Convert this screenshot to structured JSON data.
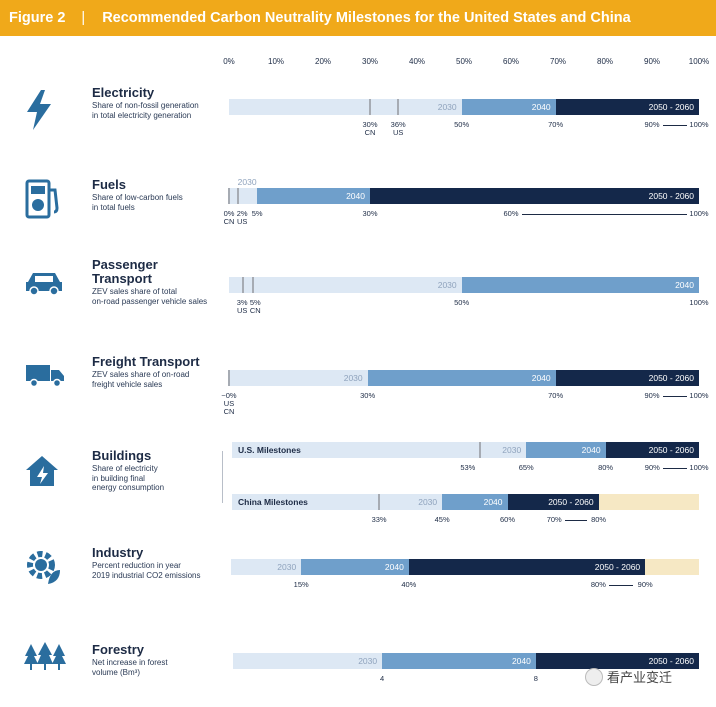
{
  "header": {
    "figure": "Figure 2",
    "separator": "|",
    "title": "Recommended Carbon Neutrality Milestones for the United States and China"
  },
  "colors": {
    "header_bg": "#f0a91a",
    "baseline": "#dde8f4",
    "period_2030": "#dde8f4",
    "period_2040": "#6f9fcb",
    "period_2050": "#14284a",
    "overflow": "#f6e8c4",
    "marker": "#a6abb3"
  },
  "chart_data": {
    "type": "bar",
    "axis": {
      "min": 0,
      "max": 100,
      "ticks": [
        "0%",
        "10%",
        "20%",
        "30%",
        "40%",
        "50%",
        "60%",
        "70%",
        "80%",
        "90%",
        "100%"
      ]
    },
    "rows": [
      {
        "id": "electricity",
        "icon": "lightning-icon",
        "title": "Electricity",
        "subtitle": [
          "Share of non-fossil generation",
          "in total electricity generation"
        ],
        "bars": [
          {
            "segments": [
              {
                "start": 0,
                "end": 49.5,
                "period": "2030",
                "label": "2030"
              },
              {
                "start": 49.5,
                "end": 69.5,
                "period": "2040",
                "label": "2040"
              },
              {
                "start": 69.5,
                "end": 100,
                "period": "2050",
                "label": "2050 - 2060"
              }
            ],
            "markers": [
              30,
              36
            ],
            "values": [
              {
                "at": 30,
                "text": "30%\nCN"
              },
              {
                "at": 36,
                "text": "36%\nUS"
              },
              {
                "at": 49.5,
                "text": "50%"
              },
              {
                "at": 69.5,
                "text": "70%"
              },
              {
                "at": 90,
                "text": "90%"
              },
              {
                "at": 100,
                "text": "100%"
              }
            ],
            "ranges": [
              [
                90,
                100
              ]
            ]
          }
        ]
      },
      {
        "id": "fuels",
        "icon": "fuel-pump-icon",
        "title": "Fuels",
        "subtitle": [
          "Share of low-carbon fuels",
          "in total fuels"
        ],
        "bars": [
          {
            "segments": [
              {
                "start": 0,
                "end": 6,
                "period": "2030",
                "label": "2030",
                "label_above": true
              },
              {
                "start": 6,
                "end": 30,
                "period": "2040",
                "label": "2040"
              },
              {
                "start": 30,
                "end": 100,
                "period": "2050",
                "label": "2050 - 2060"
              }
            ],
            "markers": [
              0,
              2
            ],
            "values": [
              {
                "at": 0,
                "text": "0%\nCN"
              },
              {
                "at": 2.8,
                "text": "2%\nUS"
              },
              {
                "at": 6,
                "text": "5%"
              },
              {
                "at": 30,
                "text": "30%"
              },
              {
                "at": 60,
                "text": "60%"
              },
              {
                "at": 100,
                "text": "100%"
              }
            ],
            "ranges": [
              [
                60,
                100
              ]
            ]
          }
        ]
      },
      {
        "id": "passenger",
        "icon": "car-icon",
        "title": "Passenger Transport",
        "subtitle": [
          "ZEV sales share of total",
          "on-road passenger vehicle sales"
        ],
        "bars": [
          {
            "segments": [
              {
                "start": 0,
                "end": 49.5,
                "period": "2030",
                "label": "2030"
              },
              {
                "start": 49.5,
                "end": 100,
                "period": "2040",
                "label": "2040"
              }
            ],
            "markers": [
              3,
              5
            ],
            "values": [
              {
                "at": 2.8,
                "text": "3%\nUS"
              },
              {
                "at": 5.6,
                "text": "5%\nCN"
              },
              {
                "at": 49.5,
                "text": "50%"
              },
              {
                "at": 100,
                "text": "100%"
              }
            ],
            "ranges": []
          }
        ]
      },
      {
        "id": "freight",
        "icon": "truck-icon",
        "title": "Freight Transport",
        "subtitle": [
          "ZEV sales share of on-road",
          "freight vehicle sales"
        ],
        "bars": [
          {
            "segments": [
              {
                "start": 0,
                "end": 29.5,
                "period": "2030",
                "label": "2030"
              },
              {
                "start": 29.5,
                "end": 69.5,
                "period": "2040",
                "label": "2040"
              },
              {
                "start": 69.5,
                "end": 100,
                "period": "2050",
                "label": "2050 - 2060"
              }
            ],
            "markers": [
              0
            ],
            "values": [
              {
                "at": 0,
                "text": "~0%\nUS\nCN"
              },
              {
                "at": 29.5,
                "text": "30%"
              },
              {
                "at": 69.5,
                "text": "70%"
              },
              {
                "at": 90,
                "text": "90%"
              },
              {
                "at": 100,
                "text": "100%"
              }
            ],
            "ranges": [
              [
                90,
                100
              ]
            ]
          }
        ]
      },
      {
        "id": "buildings",
        "icon": "house-electric-icon",
        "title": "Buildings",
        "subtitle": [
          "Share of electricity",
          "in building final",
          "energy consumption"
        ],
        "bars": [
          {
            "name": "U.S. Milestones",
            "segments": [
              {
                "start": 0,
                "end": 63,
                "period": "2030",
                "label": "2030"
              },
              {
                "start": 63,
                "end": 80,
                "period": "2040",
                "label": "2040"
              },
              {
                "start": 80,
                "end": 100,
                "period": "2050",
                "label": "2050 - 2060"
              }
            ],
            "markers": [
              53
            ],
            "values": [
              {
                "at": 50.5,
                "text": "53%"
              },
              {
                "at": 63,
                "text": "65%"
              },
              {
                "at": 80,
                "text": "80%"
              },
              {
                "at": 90,
                "text": "90%"
              },
              {
                "at": 100,
                "text": "100%"
              }
            ],
            "ranges": [
              [
                90,
                100
              ]
            ]
          },
          {
            "name": "China Milestones",
            "segments": [
              {
                "start": 0,
                "end": 45,
                "period": "2030",
                "label": "2030"
              },
              {
                "start": 45,
                "end": 59,
                "period": "2040",
                "label": "2040"
              },
              {
                "start": 59,
                "end": 78.5,
                "period": "2050",
                "label": "2050 - 2060"
              },
              {
                "start": 78.5,
                "end": 100,
                "period": "overflow",
                "label": ""
              }
            ],
            "markers": [
              31.5
            ],
            "values": [
              {
                "at": 31.5,
                "text": "33%"
              },
              {
                "at": 45,
                "text": "45%"
              },
              {
                "at": 59,
                "text": "60%"
              },
              {
                "at": 69,
                "text": "70%"
              },
              {
                "at": 78.5,
                "text": "80%"
              }
            ],
            "ranges": [
              [
                69,
                78.5
              ]
            ]
          }
        ]
      },
      {
        "id": "industry",
        "icon": "gear-leaf-icon",
        "title": "Industry",
        "subtitle": [
          "Percent reduction in year",
          "2019 industrial CO2 emissions"
        ],
        "bars": [
          {
            "segments": [
              {
                "start": 0,
                "end": 15,
                "period": "2030",
                "label": "2030"
              },
              {
                "start": 15,
                "end": 38,
                "period": "2040",
                "label": "2040"
              },
              {
                "start": 38,
                "end": 88.5,
                "period": "2050",
                "label": "2050 - 2060"
              },
              {
                "start": 88.5,
                "end": 100,
                "period": "overflow",
                "label": ""
              }
            ],
            "markers": [],
            "values": [
              {
                "at": 15,
                "text": "15%"
              },
              {
                "at": 38,
                "text": "40%"
              },
              {
                "at": 78.5,
                "text": "80%"
              },
              {
                "at": 88.5,
                "text": "90%"
              }
            ],
            "ranges": [
              [
                78.5,
                88.5
              ]
            ]
          }
        ]
      },
      {
        "id": "forestry",
        "icon": "trees-icon",
        "title": "Forestry",
        "subtitle": [
          "Net increase in forest",
          "volume (Bm³)"
        ],
        "bars": [
          {
            "segments": [
              {
                "start": 0,
                "end": 32,
                "period": "2030",
                "label": "2030"
              },
              {
                "start": 32,
                "end": 65,
                "period": "2040",
                "label": "2040"
              },
              {
                "start": 65,
                "end": 100,
                "period": "2050",
                "label": "2050 - 2060"
              }
            ],
            "markers": [],
            "values": [
              {
                "at": 32,
                "text": "4"
              },
              {
                "at": 65,
                "text": "8"
              }
            ],
            "ranges": []
          }
        ]
      }
    ]
  },
  "watermark": {
    "text": "看产业变迁"
  }
}
